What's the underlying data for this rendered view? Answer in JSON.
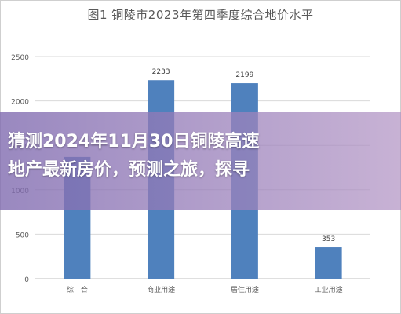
{
  "chart_data": {
    "type": "bar",
    "title": "图1 铜陵市2023年第四季度综合地价水平",
    "categories": [
      "综　合",
      "商业用途",
      "居住用途",
      "工业用途"
    ],
    "values": [
      1370,
      2233,
      2199,
      353
    ],
    "data_labels": [
      "",
      "2233",
      "2199",
      "353"
    ],
    "ylim": [
      0,
      2500
    ],
    "yticks": [
      "0",
      "500",
      "1000",
      "1500",
      "2000",
      "2500"
    ],
    "grid": true,
    "bar_color": "#4f81bd"
  },
  "banner": {
    "line1": "猜测2024年11月30日铜陵高速",
    "line2": "地产最新房价，预测之旅，探寻"
  }
}
